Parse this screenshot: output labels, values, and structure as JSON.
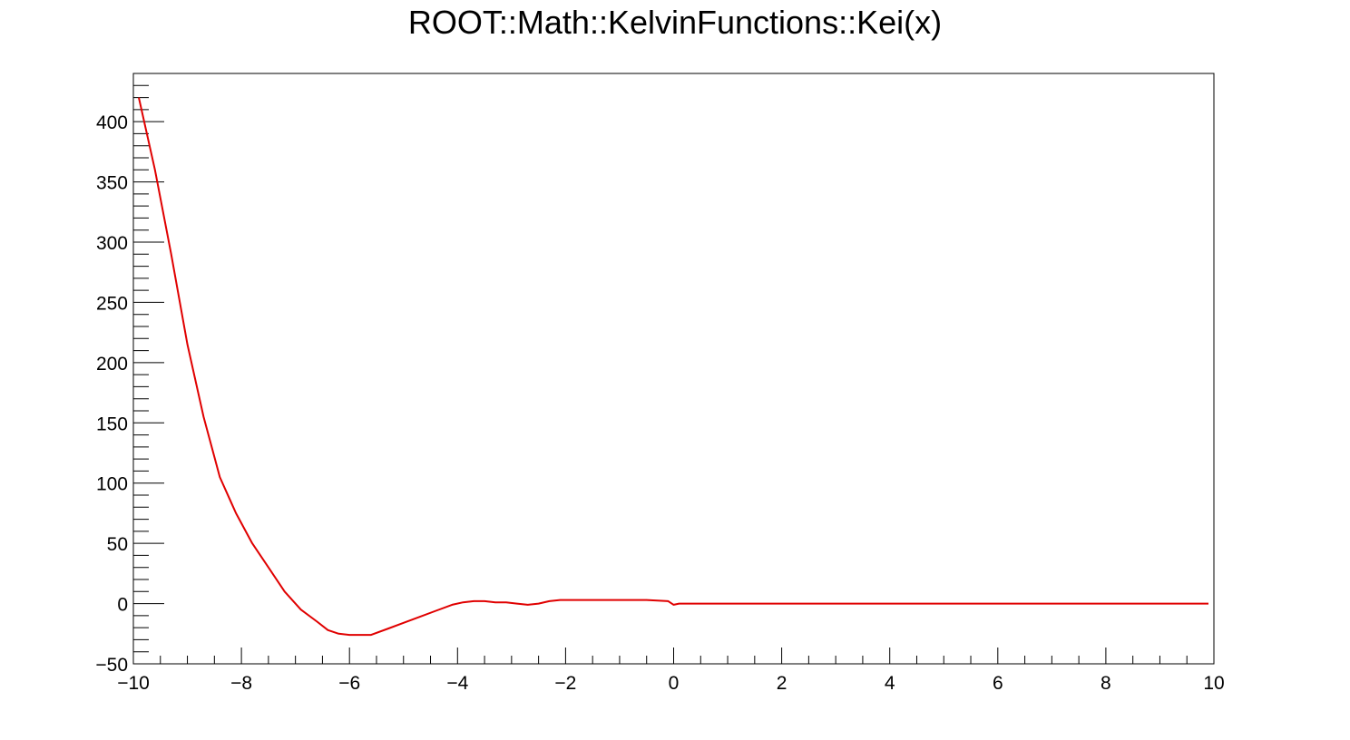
{
  "chart_data": {
    "type": "line",
    "title": "ROOT::Math::KelvinFunctions::Kei(x)",
    "xlabel": "",
    "ylabel": "",
    "xlim": [
      -10,
      10
    ],
    "ylim": [
      -50,
      440
    ],
    "x_ticks": [
      -10,
      -8,
      -6,
      -4,
      -2,
      0,
      2,
      4,
      6,
      8,
      10
    ],
    "x_tick_labels": [
      "−10",
      "−8",
      "−6",
      "−4",
      "−2",
      "0",
      "2",
      "4",
      "6",
      "8",
      "10"
    ],
    "y_ticks": [
      -50,
      0,
      50,
      100,
      150,
      200,
      250,
      300,
      350,
      400
    ],
    "y_tick_labels": [
      "−50",
      "0",
      "50",
      "100",
      "150",
      "200",
      "250",
      "300",
      "350",
      "400"
    ],
    "grid": false,
    "line_color": "#e00000",
    "series": [
      {
        "name": "",
        "x": [
          -9.9,
          -9.6,
          -9.3,
          -9.0,
          -8.7,
          -8.4,
          -8.1,
          -7.8,
          -7.5,
          -7.2,
          -6.9,
          -6.6,
          -6.4,
          -6.2,
          -6.0,
          -5.8,
          -5.6,
          -5.3,
          -5.0,
          -4.7,
          -4.4,
          -4.1,
          -3.9,
          -3.7,
          -3.5,
          -3.3,
          -3.1,
          -2.9,
          -2.7,
          -2.5,
          -2.3,
          -2.1,
          -1.5,
          -1.0,
          -0.5,
          -0.1,
          0.0,
          0.1,
          0.3,
          1.0,
          3.0,
          5.0,
          7.0,
          9.0,
          9.9
        ],
        "y": [
          420,
          360,
          290,
          215,
          155,
          105,
          75,
          50,
          30,
          10,
          -5,
          -15,
          -22,
          -25,
          -26,
          -26,
          -26,
          -21,
          -16,
          -11,
          -6,
          -1,
          1,
          2,
          2,
          1,
          1,
          0,
          -1,
          0,
          2,
          3,
          3,
          3,
          3,
          2,
          -1,
          0,
          0,
          0,
          0,
          0,
          0,
          0,
          0
        ]
      }
    ]
  }
}
